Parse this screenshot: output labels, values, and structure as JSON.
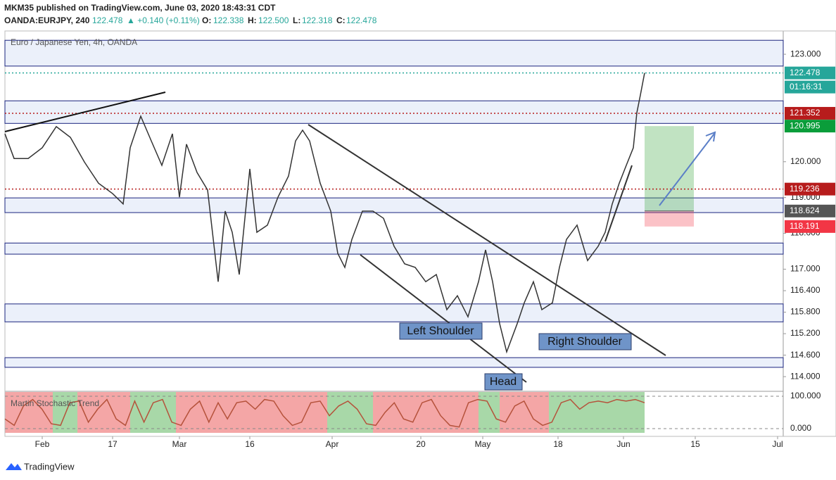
{
  "header": {
    "publisher": "MKM35 published on TradingView.com, June 03, 2020 18:43:31 CDT",
    "symbol": "OANDA:EURJPY, 240",
    "last": "122.478",
    "change": "▲ +0.140 (+0.11%)",
    "o_label": "O:",
    "o": "122.338",
    "h_label": "H:",
    "h": "122.500",
    "l_label": "L:",
    "l": "122.318",
    "c_label": "C:",
    "c": "122.478"
  },
  "footer": {
    "brand": "TradingView"
  },
  "chart_data": [
    {
      "type": "line",
      "title": "Euro / Japanese Yen, 4h, OANDA",
      "color": "#333333",
      "x": [
        0,
        1.3,
        3.3,
        5.3,
        7.3,
        9.3,
        11.3,
        13.3,
        15.3,
        16.8,
        17.8,
        19.3,
        20.8,
        22.3,
        23.8,
        24.8,
        25.8,
        27.3,
        28.8,
        30.3,
        31.3,
        32.3,
        33.3,
        34.8,
        35.8,
        37.3,
        38.8,
        40.3,
        41.3,
        42.3,
        43.3,
        44.8,
        46.3,
        47.3,
        48.3,
        49.3,
        50.8,
        52.3,
        53.8,
        55.3,
        56.8,
        58.3,
        59.8,
        61.3,
        62.8,
        64.3,
        65.8,
        67.3,
        68.3,
        69.3,
        70.3,
        71.3,
        72.8,
        73.8,
        75.1,
        76.3,
        77.8,
        78.8,
        79.8,
        81.3,
        82.8,
        84.3,
        85.3,
        86.3,
        87.3,
        88.3,
        89.3,
        89.8,
        90.3,
        90.9
      ],
      "values": [
        120.78,
        120.09,
        120.09,
        120.39,
        120.98,
        120.68,
        119.99,
        119.4,
        119.11,
        118.82,
        120.39,
        121.27,
        120.58,
        119.9,
        120.78,
        119.01,
        120.49,
        119.7,
        119.21,
        116.65,
        118.62,
        118.03,
        116.85,
        119.8,
        118.03,
        118.23,
        119.01,
        119.6,
        120.58,
        120.88,
        120.58,
        119.4,
        118.62,
        117.44,
        117.05,
        117.83,
        118.62,
        118.62,
        118.42,
        117.64,
        117.15,
        117.05,
        116.65,
        116.85,
        115.87,
        116.26,
        115.67,
        116.65,
        117.54,
        116.65,
        115.48,
        114.69,
        115.48,
        116.06,
        116.65,
        115.87,
        116.06,
        117.05,
        117.83,
        118.23,
        117.24,
        117.64,
        118.03,
        118.82,
        119.4,
        119.9,
        120.39,
        121.37,
        121.86,
        122.478
      ],
      "xlim": [
        0,
        110.6
      ],
      "xticks": [
        {
          "value": 5.3,
          "label": "Feb"
        },
        {
          "value": 15.3,
          "label": "17"
        },
        {
          "value": 24.8,
          "label": "Mar"
        },
        {
          "value": 34.8,
          "label": "16"
        },
        {
          "value": 46.5,
          "label": "Apr"
        },
        {
          "value": 59.1,
          "label": "20"
        },
        {
          "value": 67.9,
          "label": "May"
        },
        {
          "value": 78.6,
          "label": "18"
        },
        {
          "value": 87.9,
          "label": "Jun"
        },
        {
          "value": 98.1,
          "label": "15"
        },
        {
          "value": 109.8,
          "label": "Jul"
        }
      ],
      "ylim": [
        113.61,
        123.65
      ],
      "yticks": [
        {
          "value": 123,
          "label": "123.000"
        },
        {
          "value": 120,
          "label": "120.000"
        },
        {
          "value": 119,
          "label": "119.000"
        },
        {
          "value": 118,
          "label": "118.000"
        },
        {
          "value": 117,
          "label": "117.000"
        },
        {
          "value": 116.4,
          "label": "116.400"
        },
        {
          "value": 115.8,
          "label": "115.800"
        },
        {
          "value": 115.2,
          "label": "115.200"
        },
        {
          "value": 114.6,
          "label": "114.600"
        },
        {
          "value": 114,
          "label": "114.000"
        }
      ],
      "zones": [
        [
          123.39,
          122.67
        ],
        [
          121.7,
          121.07
        ],
        [
          118.99,
          118.58
        ],
        [
          117.73,
          117.42
        ],
        [
          116.03,
          115.53
        ],
        [
          114.53,
          114.26
        ]
      ],
      "price_labels": [
        {
          "value": 122.478,
          "label": "122.478",
          "color": "#26a69a"
        },
        {
          "value": 121.352,
          "label": "121.352",
          "color": "#b71c1c"
        },
        {
          "value": 120.995,
          "label": "120.995",
          "color": "#0a9d3a"
        },
        {
          "value": 119.236,
          "label": "119.236",
          "color": "#b71c1c"
        },
        {
          "value": 118.624,
          "label": "118.624",
          "color": "#555555"
        },
        {
          "value": 118.191,
          "label": "118.191",
          "color": "#f23645"
        }
      ],
      "countdown": "01:16:31",
      "annotations": [
        "Left Shoulder",
        "Head",
        "Right Shoulder"
      ]
    },
    {
      "type": "line",
      "title": "Martin Stochastic Trend",
      "color": "#b5523b",
      "values": [
        30,
        10,
        70,
        90,
        60,
        15,
        10,
        80,
        85,
        20,
        60,
        90,
        30,
        10,
        85,
        20,
        80,
        90,
        20,
        10,
        60,
        85,
        20,
        80,
        30,
        80,
        85,
        60,
        90,
        85,
        40,
        10,
        20,
        80,
        85,
        40,
        70,
        85,
        60,
        15,
        10,
        50,
        80,
        30,
        20,
        80,
        90,
        40,
        10,
        5,
        80,
        90,
        85,
        30,
        20,
        70,
        85,
        30,
        10,
        20,
        80,
        90,
        60,
        80,
        85,
        80,
        90,
        85,
        90,
        80
      ],
      "ylim": [
        -13,
        113
      ],
      "yticks": [
        {
          "value": 100,
          "label": "100.000"
        },
        {
          "value": 0,
          "label": "0.000"
        }
      ]
    }
  ]
}
